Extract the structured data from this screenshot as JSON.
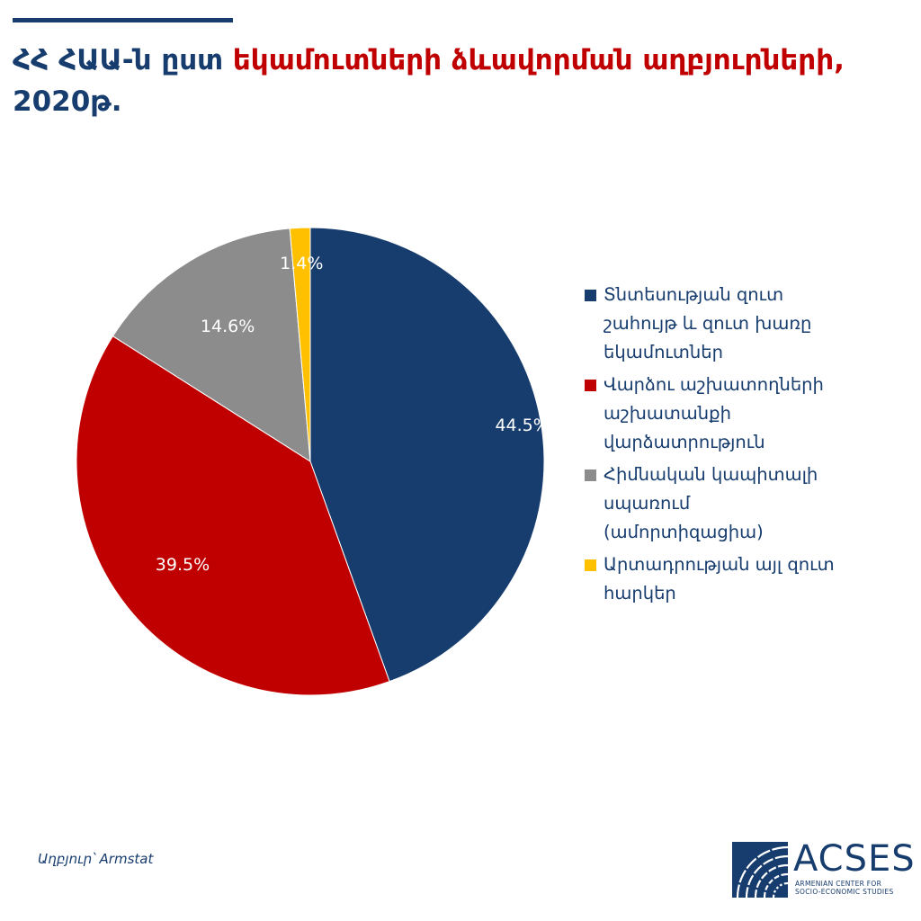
{
  "title": {
    "part1": "ՀՀ ՀԱԱ-ն ըստ ",
    "part2": "եկամուտների ձևավորման աղբյուրների,",
    "part3": "2020թ."
  },
  "colors": {
    "navy": "#173c6e",
    "red": "#c00000",
    "gray": "#8c8c8c",
    "yellow": "#ffc000"
  },
  "chart_data": {
    "type": "pie",
    "slices": [
      {
        "name": "Տնտեսության զուտ շահույթ և զուտ խառը եկամուտներ",
        "value": 44.5,
        "label": "44.5%",
        "color": "#173c6e"
      },
      {
        "name": "Վարձու աշխատողների աշխատանքի վարձատրություն",
        "value": 39.5,
        "label": "39.5%",
        "color": "#c00000"
      },
      {
        "name": "Հիմնական կապիտալի սպառում (ամորտիզացիա)",
        "value": 14.6,
        "label": "14.6%",
        "color": "#8c8c8c"
      },
      {
        "name": "Արտադրության այլ զուտ հարկեր",
        "value": 1.4,
        "label": "1.4%",
        "color": "#ffc000"
      }
    ],
    "start_angle_deg": 0,
    "direction": "clockwise",
    "legend_position": "right"
  },
  "legend": [
    {
      "text": "Տնտեսության զուտ\nշահույթ և զուտ խառը\nեկամուտներ",
      "color": "#173c6e"
    },
    {
      "text": "Վարձու աշխատողների\nաշխատանքի\nվարձատրություն",
      "color": "#c00000"
    },
    {
      "text": "Հիմնական կապիտալի\nսպառում\n(ամորտիզացիա)",
      "color": "#8c8c8c"
    },
    {
      "text": "Արտադրության այլ զուտ\nհարկեր",
      "color": "#ffc000"
    }
  ],
  "source": "Աղբյուր՝ Armstat",
  "logo": {
    "name": "ACSES",
    "subtitle": "ARMENIAN CENTER FOR\nSOCIO-ECONOMIC STUDIES"
  }
}
